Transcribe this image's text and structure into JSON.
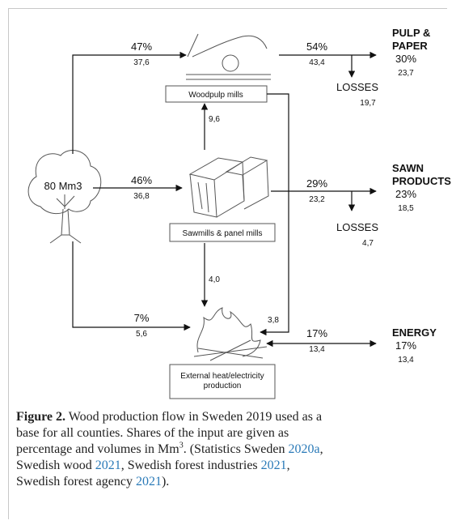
{
  "tree": {
    "label": "80 Mm3"
  },
  "flows": {
    "to_pulp": {
      "pct": "47%",
      "vol": "37,6"
    },
    "pulp_out": {
      "pct": "54%",
      "vol": "43,4"
    },
    "pulp_losses": {
      "label": "LOSSES",
      "vol": "19,7"
    },
    "saw_to_pulp": {
      "vol": "9,6"
    },
    "to_saw": {
      "pct": "46%",
      "vol": "36,8"
    },
    "saw_out": {
      "pct": "29%",
      "vol": "23,2"
    },
    "saw_losses": {
      "label": "LOSSES",
      "vol": "4,7"
    },
    "saw_to_energy": {
      "vol": "4,0"
    },
    "to_energy": {
      "pct": "7%",
      "vol": "5,6"
    },
    "pulp_to_energy": {
      "vol": "3,8"
    },
    "energy_out": {
      "pct": "17%",
      "vol": "13,4"
    }
  },
  "nodes": {
    "woodpulp": "Woodpulp mills",
    "sawmills": "Sawmills & panel mills",
    "energy_plant": [
      "External heat/electricity",
      "production"
    ]
  },
  "outputs": {
    "pulp": {
      "name": [
        "PULP &",
        "PAPER"
      ],
      "pct": "30%",
      "vol": "23,7"
    },
    "sawn": {
      "name": [
        "SAWN",
        "PRODUCTS"
      ],
      "pct": "23%",
      "vol": "18,5"
    },
    "energy": {
      "name": [
        "ENERGY"
      ],
      "pct": "17%",
      "vol": "13,4"
    }
  },
  "caption": {
    "lines": [
      [
        {
          "text": "Figure 2.",
          "style": "bold"
        },
        {
          "text": " Wood production flow in Sweden 2019 used as a"
        }
      ],
      [
        {
          "text": "base for all counties. Shares of the input are given as"
        }
      ],
      [
        {
          "text": "percentage and volumes in Mm"
        },
        {
          "text": "3",
          "style": "sup"
        },
        {
          "text": ". (Statistics Sweden "
        },
        {
          "text": "2020a",
          "style": "link"
        },
        {
          "text": ","
        }
      ],
      [
        {
          "text": "Swedish wood "
        },
        {
          "text": "2021",
          "style": "link"
        },
        {
          "text": ", Swedish forest industries "
        },
        {
          "text": "2021",
          "style": "link"
        },
        {
          "text": ","
        }
      ],
      [
        {
          "text": "Swedish forest agency "
        },
        {
          "text": "2021",
          "style": "link"
        },
        {
          "text": ")."
        }
      ]
    ]
  }
}
